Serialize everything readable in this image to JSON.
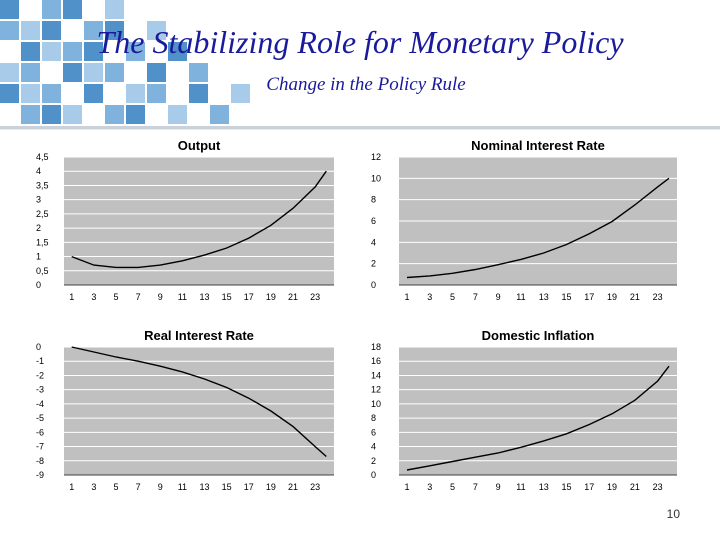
{
  "slide": {
    "title": "The Stabilizing Role for Monetary Policy",
    "subtitle": "Change in the Policy Rule",
    "page_number": "10",
    "title_color": "#1a1a9c",
    "decoration": "blue-square-mosaic",
    "decoration_colors": [
      "#4f91c8",
      "#7fb2dc",
      "#a8cbe9",
      "#cfe1f3"
    ]
  },
  "chart_data": [
    {
      "type": "line",
      "title": "Output",
      "x": [
        1,
        3,
        5,
        7,
        9,
        11,
        13,
        15,
        17,
        19,
        21,
        23,
        24
      ],
      "series": [
        {
          "values": [
            1.0,
            0.7,
            0.62,
            0.62,
            0.7,
            0.85,
            1.05,
            1.3,
            1.65,
            2.1,
            2.7,
            3.45,
            4.0
          ]
        }
      ],
      "xticks": [
        "1",
        "3",
        "5",
        "7",
        "9",
        "11",
        "13",
        "15",
        "17",
        "19",
        "21",
        "23"
      ],
      "yticks": [
        "0",
        "0,5",
        "1",
        "1,5",
        "2",
        "2,5",
        "3",
        "3,5",
        "4",
        "4,5"
      ],
      "ylim": [
        0,
        4.5
      ],
      "grid": true,
      "plot_bg": "#c0c0c0",
      "line_color": "#000000"
    },
    {
      "type": "line",
      "title": "Nominal Interest Rate",
      "x": [
        1,
        3,
        5,
        7,
        9,
        11,
        13,
        15,
        17,
        19,
        21,
        23,
        24
      ],
      "series": [
        {
          "values": [
            0.7,
            0.85,
            1.1,
            1.45,
            1.9,
            2.4,
            3.0,
            3.8,
            4.8,
            5.95,
            7.5,
            9.2,
            10.0
          ]
        }
      ],
      "xticks": [
        "1",
        "3",
        "5",
        "7",
        "9",
        "11",
        "13",
        "15",
        "17",
        "19",
        "21",
        "23"
      ],
      "yticks": [
        "0",
        "2",
        "4",
        "6",
        "8",
        "10",
        "12"
      ],
      "ylim": [
        0,
        12
      ],
      "grid": true,
      "plot_bg": "#c0c0c0",
      "line_color": "#000000"
    },
    {
      "type": "line",
      "title": "Real Interest Rate",
      "x": [
        1,
        3,
        5,
        7,
        9,
        11,
        13,
        15,
        17,
        19,
        21,
        23,
        24
      ],
      "series": [
        {
          "values": [
            0.0,
            -0.35,
            -0.7,
            -1.0,
            -1.35,
            -1.75,
            -2.25,
            -2.85,
            -3.6,
            -4.5,
            -5.6,
            -7.0,
            -7.7
          ]
        }
      ],
      "xticks": [
        "1",
        "3",
        "5",
        "7",
        "9",
        "11",
        "13",
        "15",
        "17",
        "19",
        "21",
        "23"
      ],
      "yticks": [
        "-9",
        "-8",
        "-7",
        "-6",
        "-5",
        "-4",
        "-3",
        "-2",
        "-1",
        "0"
      ],
      "ylim": [
        -9,
        0
      ],
      "grid": true,
      "plot_bg": "#c0c0c0",
      "line_color": "#000000"
    },
    {
      "type": "line",
      "title": "Domestic Inflation",
      "x": [
        1,
        3,
        5,
        7,
        9,
        11,
        13,
        15,
        17,
        19,
        21,
        23,
        24
      ],
      "series": [
        {
          "values": [
            0.7,
            1.3,
            1.9,
            2.5,
            3.1,
            3.9,
            4.8,
            5.8,
            7.1,
            8.6,
            10.5,
            13.2,
            15.3
          ]
        }
      ],
      "xticks": [
        "1",
        "3",
        "5",
        "7",
        "9",
        "11",
        "13",
        "15",
        "17",
        "19",
        "21",
        "23"
      ],
      "yticks": [
        "0",
        "2",
        "4",
        "6",
        "8",
        "10",
        "12",
        "14",
        "16",
        "18"
      ],
      "ylim": [
        0,
        18
      ],
      "grid": true,
      "plot_bg": "#c0c0c0",
      "line_color": "#000000"
    }
  ]
}
